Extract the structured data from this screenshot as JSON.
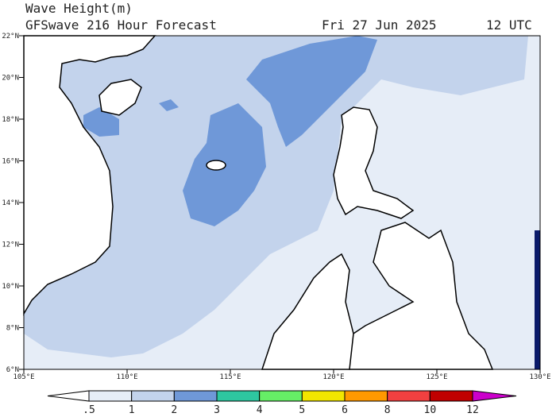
{
  "header": {
    "title": "Wave Height(m)",
    "subtitle": "GFSwave 216 Hour Forecast",
    "date": "Fri 27 Jun 2025",
    "time": "12 UTC"
  },
  "map": {
    "lat_labels": [
      "22°N",
      "20°N",
      "18°N",
      "16°N",
      "14°N",
      "12°N",
      "10°N",
      "8°N",
      "6°N"
    ],
    "lon_labels": [
      "105°E",
      "110°E",
      "115°E",
      "120°E",
      "125°E",
      "130°E"
    ]
  },
  "colorbar": {
    "labels": [
      ".5",
      "1",
      "2",
      "3",
      "4",
      "5",
      "6",
      "8",
      "10",
      "12"
    ],
    "colors": [
      "#ffffff",
      "#e6edf7",
      "#c3d3ec",
      "#6f98d8",
      "#2ec7a0",
      "#66ee66",
      "#f2e600",
      "#ff9900",
      "#f24040",
      "#c00000",
      "#cc00cc"
    ]
  }
}
